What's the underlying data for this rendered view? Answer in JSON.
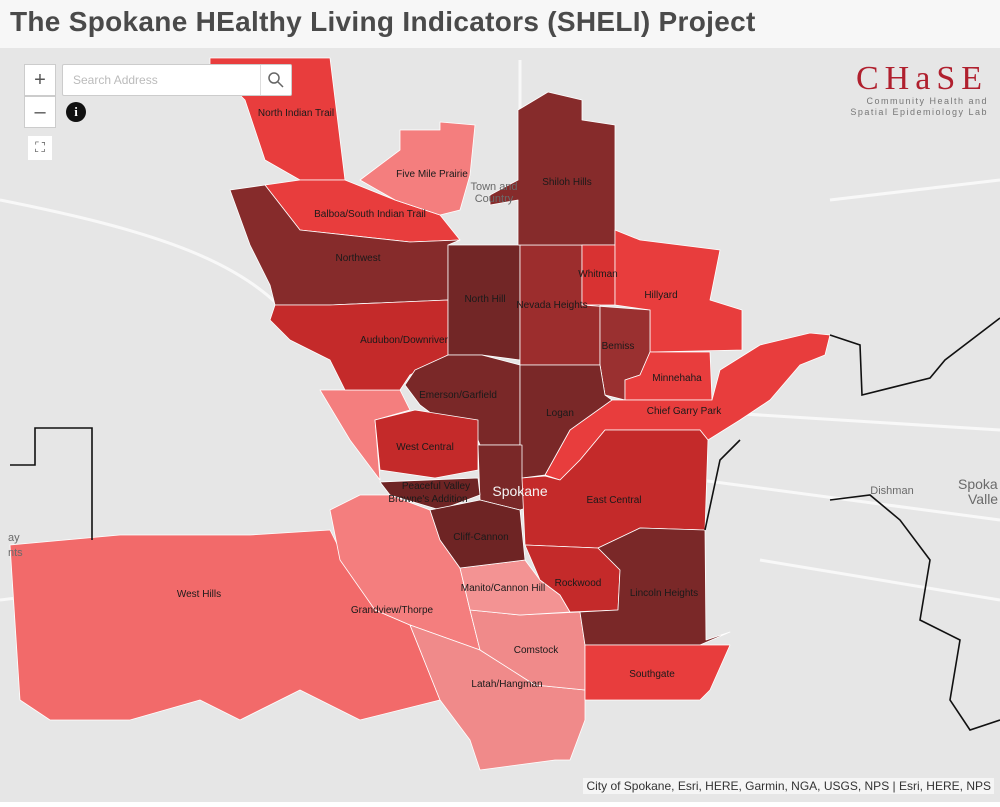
{
  "header": {
    "title": "The Spokane HEalthy Living Indicators (SHELI) Project"
  },
  "controls": {
    "zoom_in": "+",
    "zoom_out": "–",
    "info": "i",
    "search_placeholder": "Search Address"
  },
  "logo": {
    "name": "CHaSE",
    "line1": "Community Health and",
    "line2": "Spatial Epidemiology Lab"
  },
  "neighborhoods": [
    "North Indian Trail",
    "Five Mile Prairie",
    "Shiloh Hills",
    "Balboa/South Indian Trail",
    "Northwest",
    "North Hill",
    "Nevada Heights",
    "Whitman",
    "Hillyard",
    "Audubon/Downriver",
    "Bemiss",
    "Minnehaha",
    "Emerson/Garfield",
    "Logan",
    "Chief Garry Park",
    "West Central",
    "Peaceful Valley",
    "Browne's Addition",
    "East Central",
    "Cliff-Cannon",
    "Rockwood",
    "West Hills",
    "Manito/Cannon Hill",
    "Grandview/Thorpe",
    "Lincoln Heights",
    "Comstock",
    "Southgate",
    "Latah/Hangman"
  ],
  "places": [
    "Town and",
    "Country",
    "Spokane",
    "Dishman",
    "Spoka",
    "Valle",
    "ay",
    "nts"
  ],
  "attribution": "City of Spokane, Esri, HERE, Garmin, NGA, USGS, NPS | Esri, HERE, NPS"
}
